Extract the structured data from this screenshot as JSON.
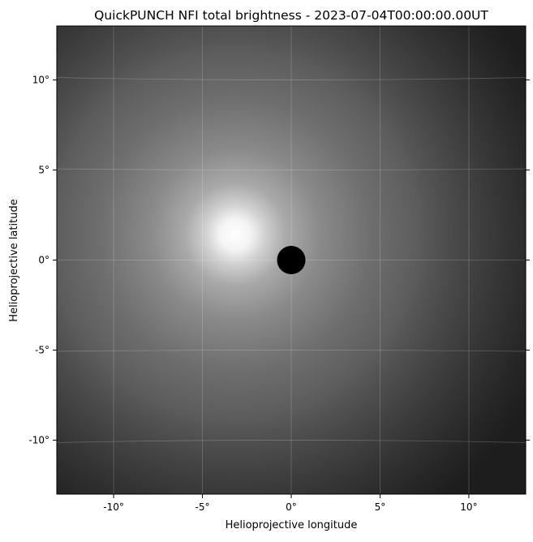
{
  "chart_data": {
    "type": "heatmap",
    "title": "QuickPUNCH NFI total brightness - 2023-07-04T00:00:00.00UT",
    "xlabel": "Helioprojective longitude",
    "ylabel": "Helioprojective latitude",
    "xlim": [
      -13.2,
      13.2
    ],
    "ylim": [
      -13.0,
      13.0
    ],
    "xticks": [
      {
        "value": -10,
        "label": "-10°"
      },
      {
        "value": -5,
        "label": "-5°"
      },
      {
        "value": 0,
        "label": "0°"
      },
      {
        "value": 5,
        "label": "5°"
      },
      {
        "value": 10,
        "label": "10°"
      }
    ],
    "yticks": [
      {
        "value": 10,
        "label": "10°"
      },
      {
        "value": 5,
        "label": "5°"
      },
      {
        "value": 0,
        "label": "0°"
      },
      {
        "value": -5,
        "label": "-5°"
      },
      {
        "value": -10,
        "label": "-10°"
      }
    ],
    "grid": true,
    "colormap": "grayscale",
    "occulter": {
      "center": [
        0,
        0
      ],
      "radius_deg": 0.8,
      "color": "#000000"
    }
  }
}
